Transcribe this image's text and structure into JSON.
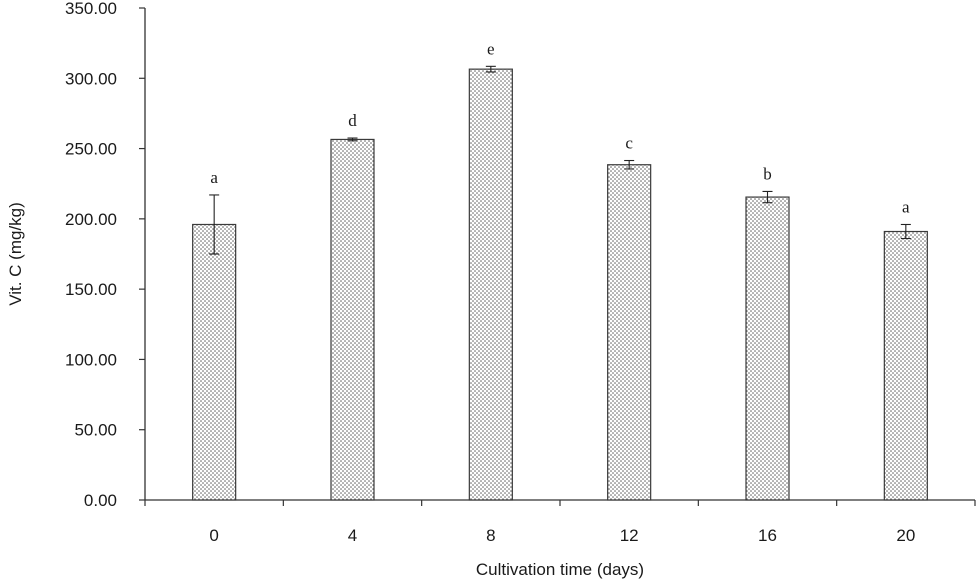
{
  "chart_data": {
    "type": "bar",
    "title": "",
    "xlabel": "Cultivation time (days)",
    "ylabel": "Vit. C (mg/kg)",
    "ylim": [
      0,
      350
    ],
    "yticks": [
      "0.00",
      "50.00",
      "100.00",
      "150.00",
      "200.00",
      "250.00",
      "300.00",
      "350.00"
    ],
    "categories": [
      "0",
      "4",
      "8",
      "12",
      "16",
      "20"
    ],
    "values": [
      196,
      256.5,
      306.5,
      238.5,
      215.5,
      191
    ],
    "errors": [
      21,
      1,
      2,
      3,
      4,
      5
    ],
    "significance_letters": [
      "a",
      "d",
      "e",
      "c",
      "b",
      "a"
    ],
    "grid": false,
    "legend": "none",
    "bar_fill": "dotted-pattern",
    "colors": {
      "bar_outline": "#3a3a3a",
      "bar_dots": "#555555",
      "axis": "#333333"
    }
  }
}
